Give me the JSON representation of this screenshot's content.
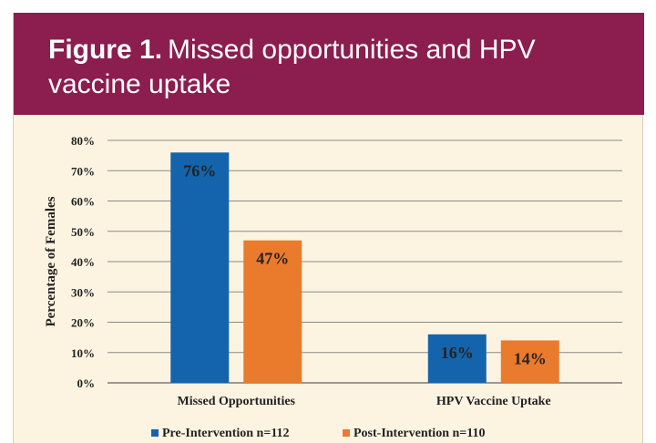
{
  "figure": {
    "label": "Figure 1.",
    "title": "Missed opportunities and HPV vaccine uptake"
  },
  "colors": {
    "header": "#8b1d4f",
    "background": "#fcf4e1",
    "pre": "#1464ad",
    "post": "#ea7a2c"
  },
  "chart_data": {
    "type": "bar",
    "categories": [
      "Missed Opportunities",
      "HPV Vaccine Uptake"
    ],
    "series": [
      {
        "name": "Pre-Intervention n=112",
        "values": [
          76,
          16
        ],
        "labels": [
          "76%",
          "16%"
        ]
      },
      {
        "name": "Post-Intervention n=110",
        "values": [
          47,
          14
        ],
        "labels": [
          "47%",
          "14%"
        ]
      }
    ],
    "ylabel": "Percentage of Females",
    "ylim": [
      0,
      80
    ],
    "yticks": [
      "0%",
      "10%",
      "20%",
      "30%",
      "40%",
      "50%",
      "60%",
      "70%",
      "80%"
    ],
    "grid": true,
    "legend": "bottom"
  }
}
